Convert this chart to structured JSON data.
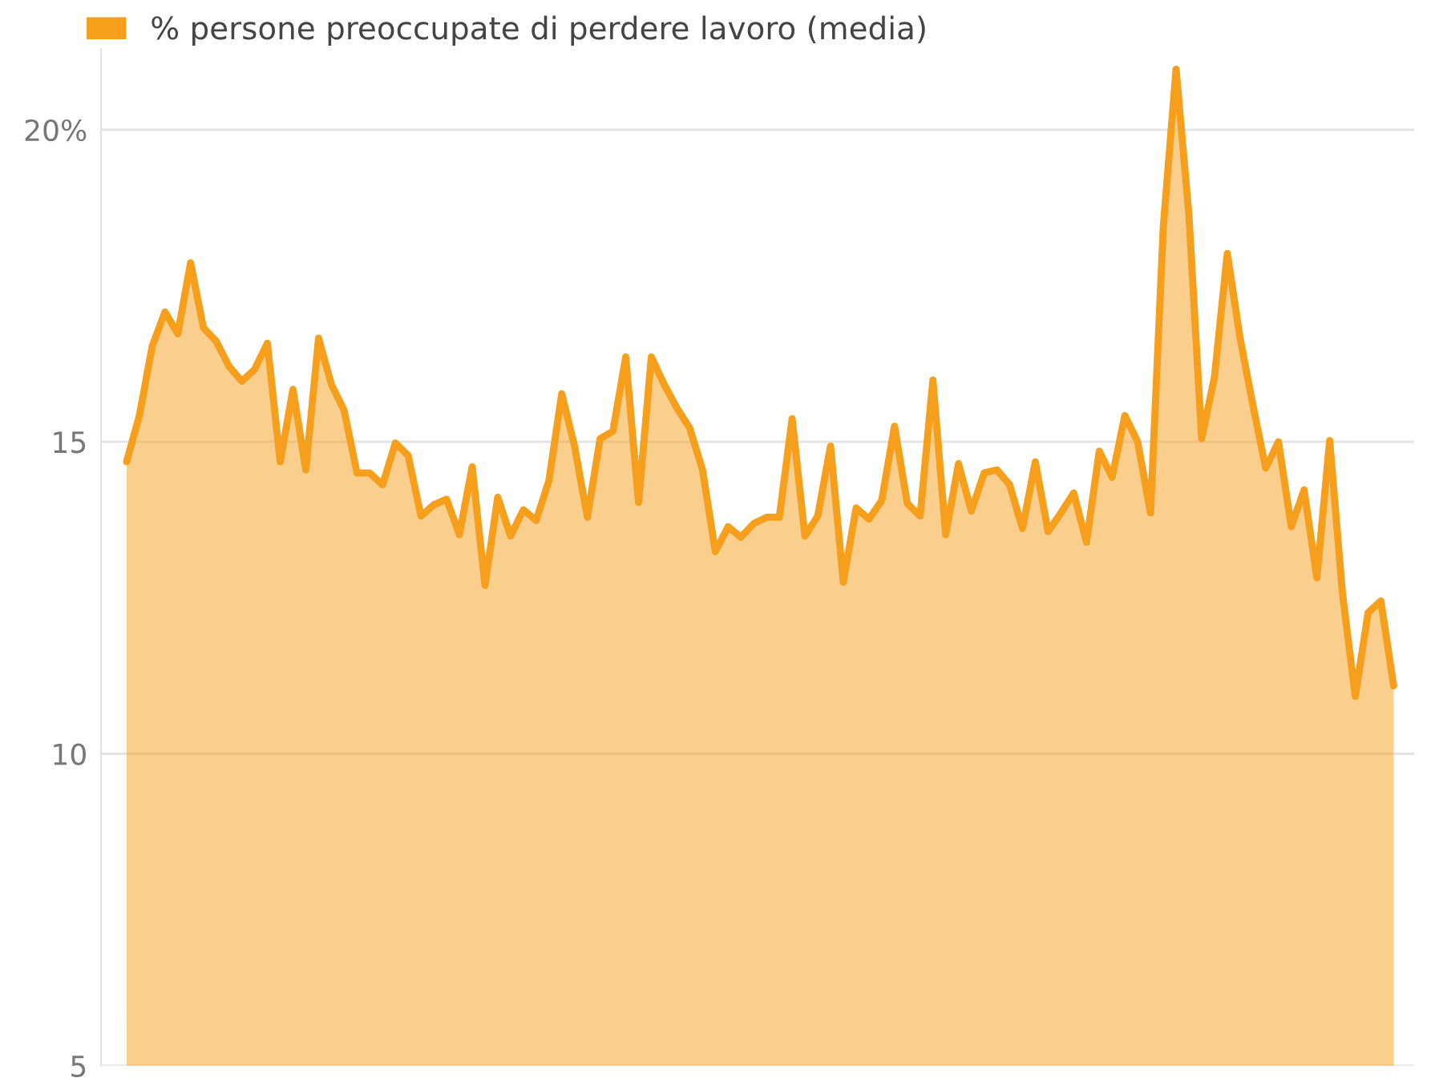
{
  "chart_data": {
    "type": "area",
    "categories": [
      null,
      null,
      null,
      null,
      null,
      null,
      null,
      null,
      null,
      null,
      null,
      null,
      null,
      null,
      null,
      null,
      null,
      null,
      null,
      null,
      null,
      null,
      null,
      null,
      null,
      null,
      null,
      null,
      null,
      null,
      null,
      null,
      null,
      null,
      null,
      null,
      null,
      null,
      null,
      null,
      null,
      null,
      null,
      null,
      null,
      null,
      null,
      null,
      null,
      null,
      null,
      null,
      null,
      null,
      null,
      null,
      null,
      null,
      null,
      null,
      null,
      null,
      null,
      null,
      null,
      null,
      null,
      null,
      null,
      null,
      null,
      null,
      null,
      null,
      null,
      null,
      null,
      null,
      null,
      null,
      null,
      null,
      null,
      null,
      null,
      null,
      null,
      null,
      null,
      null,
      null,
      null,
      null,
      null,
      null,
      null,
      null,
      null,
      null,
      null
    ],
    "series": [
      {
        "name": "% persone preoccupate di perdere lavoro (media)",
        "color": "#f59f1c",
        "values": [
          14.68,
          15.42,
          16.53,
          17.08,
          16.73,
          17.87,
          16.83,
          16.61,
          16.21,
          15.97,
          16.16,
          16.58,
          14.68,
          15.84,
          14.55,
          16.66,
          15.92,
          15.5,
          14.5,
          14.5,
          14.31,
          14.98,
          14.78,
          13.81,
          13.99,
          14.08,
          13.51,
          14.6,
          12.7,
          14.11,
          13.49,
          13.91,
          13.74,
          14.38,
          15.77,
          14.93,
          13.79,
          15.05,
          15.17,
          16.36,
          14.03,
          16.36,
          15.92,
          15.54,
          15.22,
          14.55,
          13.24,
          13.64,
          13.47,
          13.69,
          13.79,
          13.79,
          15.37,
          13.49,
          13.81,
          14.93,
          12.75,
          13.94,
          13.76,
          14.06,
          15.25,
          14.01,
          13.81,
          15.99,
          13.51,
          14.65,
          13.89,
          14.5,
          14.55,
          14.31,
          13.61,
          14.68,
          13.56,
          13.86,
          14.18,
          13.39,
          14.85,
          14.43,
          15.42,
          15.0,
          13.86,
          18.44,
          20.97,
          18.64,
          15.05,
          16.04,
          18.02,
          16.66,
          15.59,
          14.58,
          15.0,
          13.64,
          14.23,
          12.82,
          15.02,
          12.57,
          10.92,
          12.26,
          12.45,
          11.09
        ]
      }
    ],
    "ylim": [
      5,
      21.3
    ],
    "yticks": [
      5,
      10,
      15,
      {
        "value": 20,
        "label": "20%"
      }
    ],
    "grid": "y",
    "legend": "top left"
  }
}
